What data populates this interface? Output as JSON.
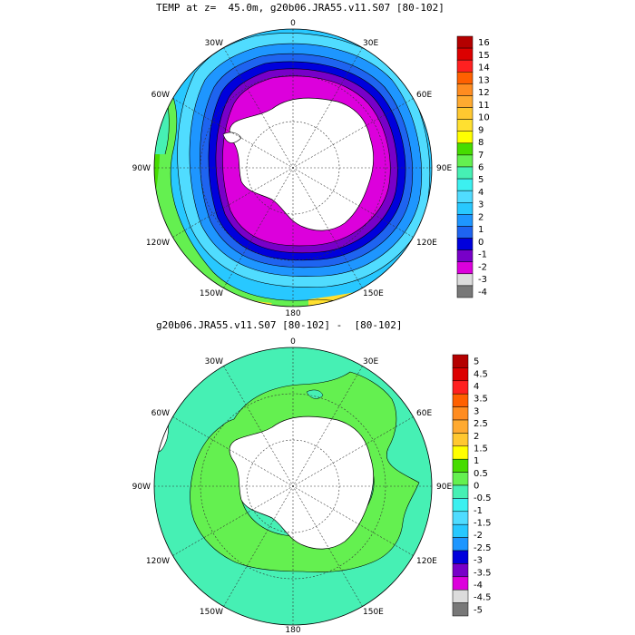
{
  "panel1": {
    "title": "TEMP at z=  45.0m, g20b06.JRA55.v11.S07 [80-102]",
    "lon_labels": {
      "top": "0",
      "tr": "30E",
      "rt": "60E",
      "right": "90E",
      "rb": "120E",
      "br": "150E",
      "bottom": "180",
      "bl": "150W",
      "lb": "120W",
      "left": "90W",
      "lt": "60W",
      "tl": "30W"
    },
    "colorbar": {
      "labels": [
        "16",
        "15",
        "14",
        "13",
        "12",
        "11",
        "10",
        "9",
        "8",
        "7",
        "6",
        "5",
        "4",
        "3",
        "2",
        "1",
        "0",
        "-1",
        "-2",
        "-3",
        "-4"
      ],
      "colors": [
        "#b40000",
        "#dc0000",
        "#ff2020",
        "#ff6000",
        "#ff8c20",
        "#ffaa30",
        "#ffc830",
        "#ffe030",
        "#ffff00",
        "#46dc00",
        "#64f050",
        "#46f0b4",
        "#3cf0f0",
        "#50dcff",
        "#28c8ff",
        "#1e96ff",
        "#1e64f0",
        "#0000dc",
        "#7800c8",
        "#dc00dc",
        "#dcdcdc",
        "#787878"
      ]
    }
  },
  "panel2": {
    "title": "g20b06.JRA55.v11.S07 [80-102] -  [80-102]",
    "lon_labels": {
      "top": "0",
      "tr": "30E",
      "rt": "60E",
      "right": "90E",
      "rb": "120E",
      "br": "150E",
      "bottom": "180",
      "bl": "150W",
      "lb": "120W",
      "left": "90W",
      "lt": "60W",
      "tl": "30W"
    },
    "colorbar": {
      "labels": [
        "5",
        "4.5",
        "4",
        "3.5",
        "3",
        "2.5",
        "2",
        "1.5",
        "1",
        "0.5",
        "0",
        "-0.5",
        "-1",
        "-1.5",
        "-2",
        "-2.5",
        "-3",
        "-3.5",
        "-4",
        "-4.5",
        "-5"
      ],
      "colors": [
        "#b40000",
        "#dc0000",
        "#ff2020",
        "#ff6000",
        "#ff8c20",
        "#ffaa30",
        "#ffc830",
        "#ffff00",
        "#46dc00",
        "#64f050",
        "#46f0b4",
        "#3cf0f0",
        "#50dcff",
        "#28c8ff",
        "#1e96ff",
        "#0000dc",
        "#7800c8",
        "#dc00dc",
        "#dcdcdc",
        "#787878"
      ]
    }
  }
}
